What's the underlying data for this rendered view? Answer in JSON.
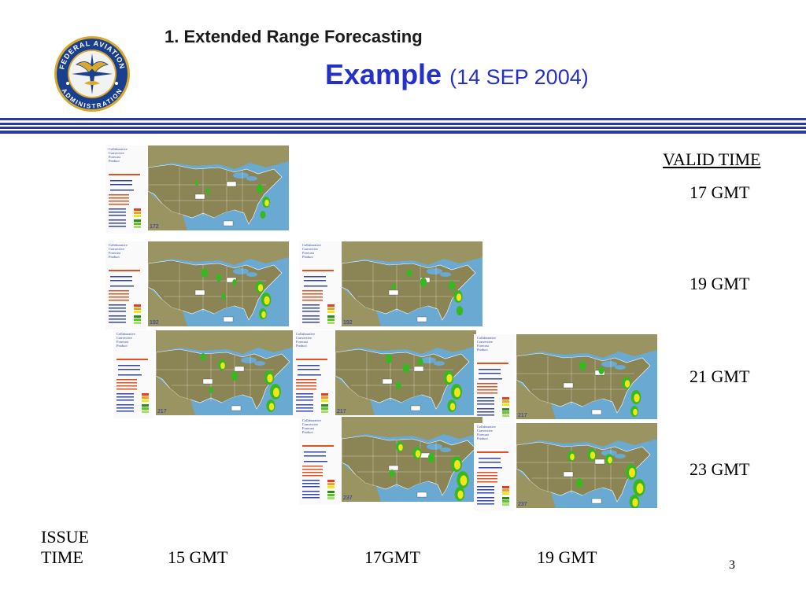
{
  "header": {
    "title": "1.  Extended Range Forecasting",
    "example_word": "Example",
    "example_date": "(14 SEP 2004)"
  },
  "logo": {
    "text_top": "FEDERAL AVIATION",
    "text_bottom": "ADMINISTRATION",
    "colors": {
      "ring": "#1b3f8f",
      "inner": "#f2f2f2",
      "gold": "#d9a92a"
    }
  },
  "valid_time": {
    "heading": "VALID TIME",
    "rows": [
      "17 GMT",
      "19 GMT",
      "21 GMT",
      "23 GMT"
    ]
  },
  "issue_time": {
    "label_line1": "ISSUE",
    "label_line2": "TIME",
    "columns": [
      "15 GMT",
      "17GMT",
      "19 GMT"
    ]
  },
  "forecast_panels": {
    "product_title": [
      "Collaborative",
      "Convective",
      "Forecast",
      "Product"
    ],
    "panel_codes": [
      "172",
      "192",
      "192",
      "217",
      "217",
      "217",
      "237",
      "237"
    ]
  },
  "page_number": "3",
  "colors": {
    "title_blue": "#2430c8",
    "rule_blue": "#2b3aa0",
    "ocean": "#6aa9d2",
    "land": "#8b8455",
    "forecast_green": "#38b820",
    "forecast_yellow": "#f2e51c"
  }
}
